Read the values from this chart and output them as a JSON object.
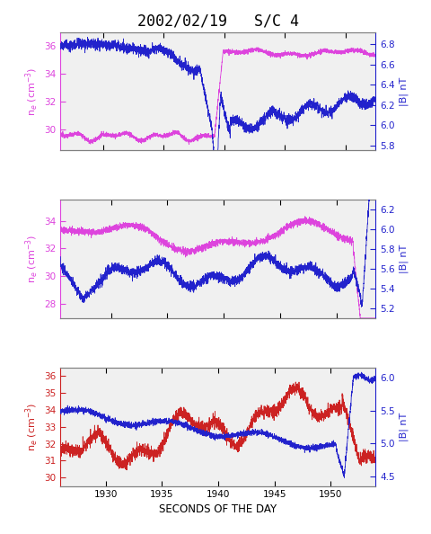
{
  "title": "2002/02/19   S/C 4",
  "title_fontsize": 12,
  "xlabel": "SECONDS OF THE DAY",
  "ylabel_left": "n$_e$ (cm$^{-3}$)",
  "ylabel_right": "|B| nT",
  "bg_color": "#f0f0f0",
  "panel1": {
    "xlim": [
      591.5,
      617.5
    ],
    "xticks": [
      595,
      600,
      605,
      610,
      615
    ],
    "ylim_left": [
      28.5,
      37.0
    ],
    "yticks_left": [
      30,
      32,
      34,
      36
    ],
    "ylim_right": [
      5.75,
      6.92
    ],
    "yticks_right": [
      5.8,
      6.0,
      6.2,
      6.4,
      6.6,
      6.8
    ],
    "color_left": "#dd44dd",
    "color_right": "#2222cc"
  },
  "panel2": {
    "xlim": [
      1865.5,
      1893.5
    ],
    "xticks": [
      1870,
      1875,
      1880,
      1885,
      1890
    ],
    "ylim_left": [
      27.0,
      35.5
    ],
    "yticks_left": [
      28,
      30,
      32,
      34
    ],
    "ylim_right": [
      5.1,
      6.3
    ],
    "yticks_right": [
      5.2,
      5.4,
      5.6,
      5.8,
      6.0,
      6.2
    ],
    "color_left": "#dd44dd",
    "color_right": "#2222cc"
  },
  "panel3": {
    "xlim": [
      1926.0,
      1954.0
    ],
    "xticks": [
      1930,
      1935,
      1940,
      1945,
      1950
    ],
    "ylim_left": [
      29.5,
      36.5
    ],
    "yticks_left": [
      30,
      31,
      32,
      33,
      34,
      35,
      36
    ],
    "ylim_right": [
      4.35,
      6.15
    ],
    "yticks_right": [
      4.5,
      5.0,
      5.5,
      6.0
    ],
    "color_left": "#cc2222",
    "color_right": "#2222cc"
  }
}
